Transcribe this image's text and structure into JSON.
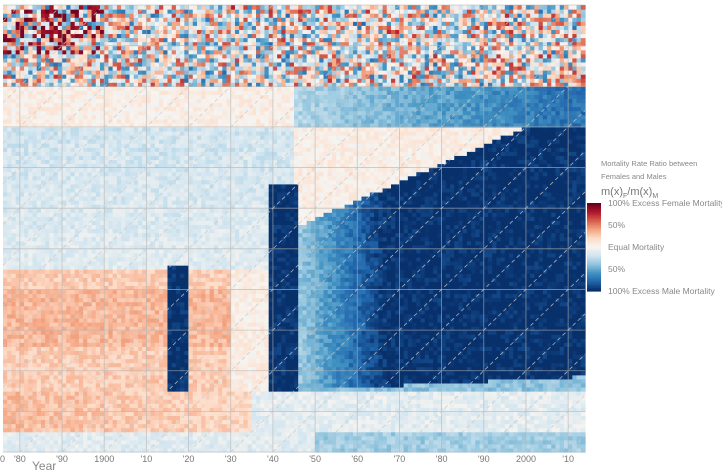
{
  "chart_data": {
    "type": "heatmap",
    "title": "",
    "xlabel": "Year",
    "ylabel": "",
    "x_range": [
      1876,
      2014
    ],
    "y_range": [
      0,
      110
    ],
    "x_ticks": [
      {
        "value": 1870,
        "label": "0"
      },
      {
        "value": 1880,
        "label": "'80"
      },
      {
        "value": 1890,
        "label": "'90"
      },
      {
        "value": 1900,
        "label": "1900"
      },
      {
        "value": 1910,
        "label": "'10"
      },
      {
        "value": 1920,
        "label": "'20"
      },
      {
        "value": 1930,
        "label": "'30"
      },
      {
        "value": 1940,
        "label": "'40"
      },
      {
        "value": 1950,
        "label": "'50"
      },
      {
        "value": 1960,
        "label": "'60"
      },
      {
        "value": 1970,
        "label": "'70"
      },
      {
        "value": 1980,
        "label": "'80"
      },
      {
        "value": 1990,
        "label": "'90"
      },
      {
        "value": 2000,
        "label": "2000"
      },
      {
        "value": 2010,
        "label": "'10"
      }
    ],
    "grid": true,
    "cohort_diagonals": true,
    "color_scale": {
      "low": "#08306b",
      "mid": "#f7f4f0",
      "high": "#67001f",
      "stops": [
        "#08306b",
        "#2166ac",
        "#4393c3",
        "#92c5de",
        "#d1e5f0",
        "#f7f4f0",
        "#fddbc7",
        "#f4a582",
        "#d6604d",
        "#b2182b",
        "#67001f"
      ]
    },
    "regions": [
      {
        "feature": "male excess mortality, adult ages, modern period",
        "years": [
          1950,
          2014
        ],
        "ages": [
          12,
          75
        ],
        "value": -1.0
      },
      {
        "feature": "World War I male excess",
        "years": [
          1915,
          1919
        ],
        "ages": [
          15,
          45
        ],
        "value": -1.0
      },
      {
        "feature": "World War II male excess",
        "years": [
          1939,
          1945
        ],
        "ages": [
          15,
          65
        ],
        "value": -1.0
      },
      {
        "feature": "female excess mortality, childbearing ages",
        "years": [
          1876,
          1930
        ],
        "ages": [
          15,
          45
        ],
        "value": 0.3
      },
      {
        "feature": "female excess mortality, childhood",
        "years": [
          1876,
          1935
        ],
        "ages": [
          5,
          15
        ],
        "value": 0.4
      },
      {
        "feature": "near equal mortality, oldest ages",
        "years": [
          1876,
          2014
        ],
        "ages": [
          75,
          110
        ],
        "value": 0.0
      }
    ],
    "legend": {
      "title_line1": "Mortality Rate Ratio between",
      "title_line2": "Females and Males",
      "formula_main": "m(x)",
      "formula_sub1": "F",
      "formula_sep": "/m(x)",
      "formula_sub2": "M",
      "labels": [
        {
          "value": 1.0,
          "text": "100% Excess Female Mortality"
        },
        {
          "value": 0.5,
          "text": "50%"
        },
        {
          "value": 0.0,
          "text": "Equal Mortality"
        },
        {
          "value": -0.5,
          "text": "50%"
        },
        {
          "value": -1.0,
          "text": "100% Excess Male Mortality"
        }
      ],
      "position": "right"
    }
  }
}
